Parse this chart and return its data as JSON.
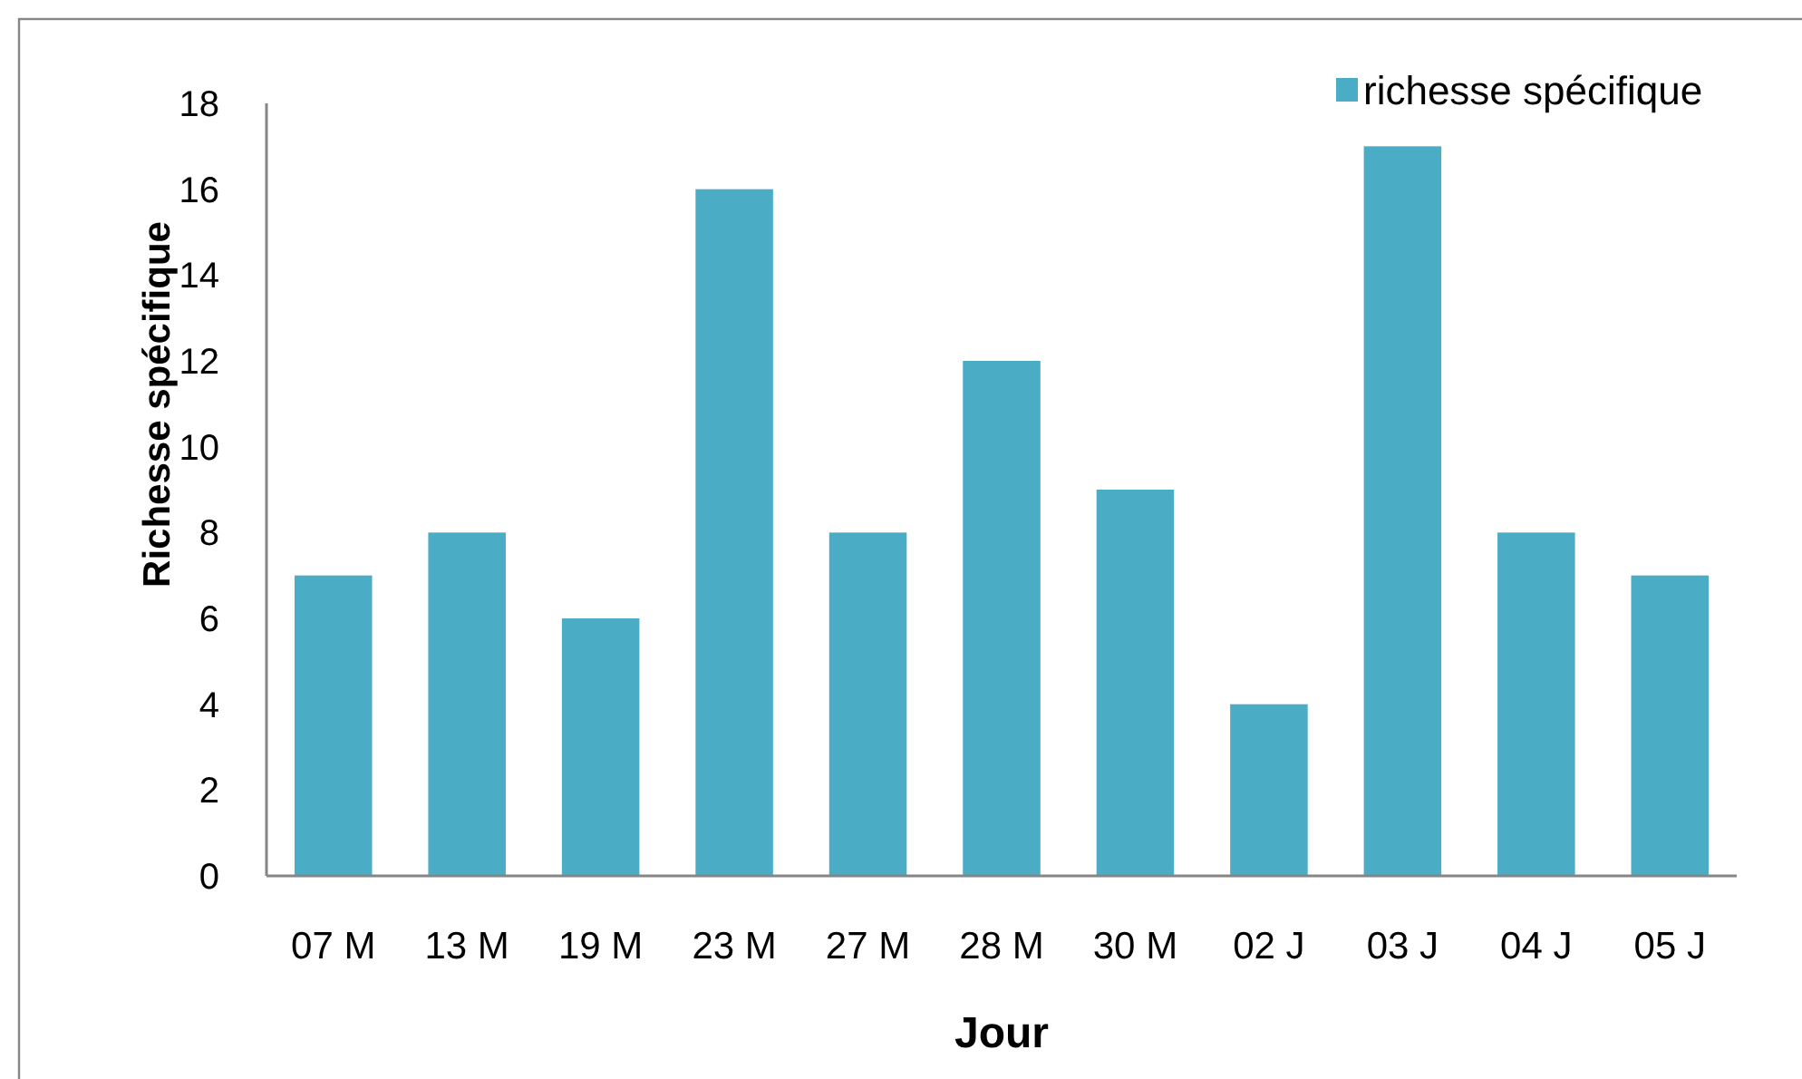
{
  "chart_data": {
    "type": "bar",
    "xlabel": "Jour",
    "ylabel": "Richesse spécifique",
    "categories": [
      "07 M",
      "13 M",
      "19 M",
      "23 M",
      "27 M",
      "28 M",
      "30 M",
      "02 J",
      "03 J",
      "04 J",
      "05 J"
    ],
    "series": [
      {
        "name": "richesse spécifique",
        "color": "#4bacc6",
        "values": [
          7,
          8,
          6,
          16,
          8,
          12,
          9,
          4,
          17,
          8,
          7
        ]
      }
    ],
    "ylim": [
      0,
      18
    ],
    "yticks": [
      0,
      2,
      4,
      6,
      8,
      10,
      12,
      14,
      16,
      18
    ],
    "grid": false,
    "legend": "top right"
  }
}
